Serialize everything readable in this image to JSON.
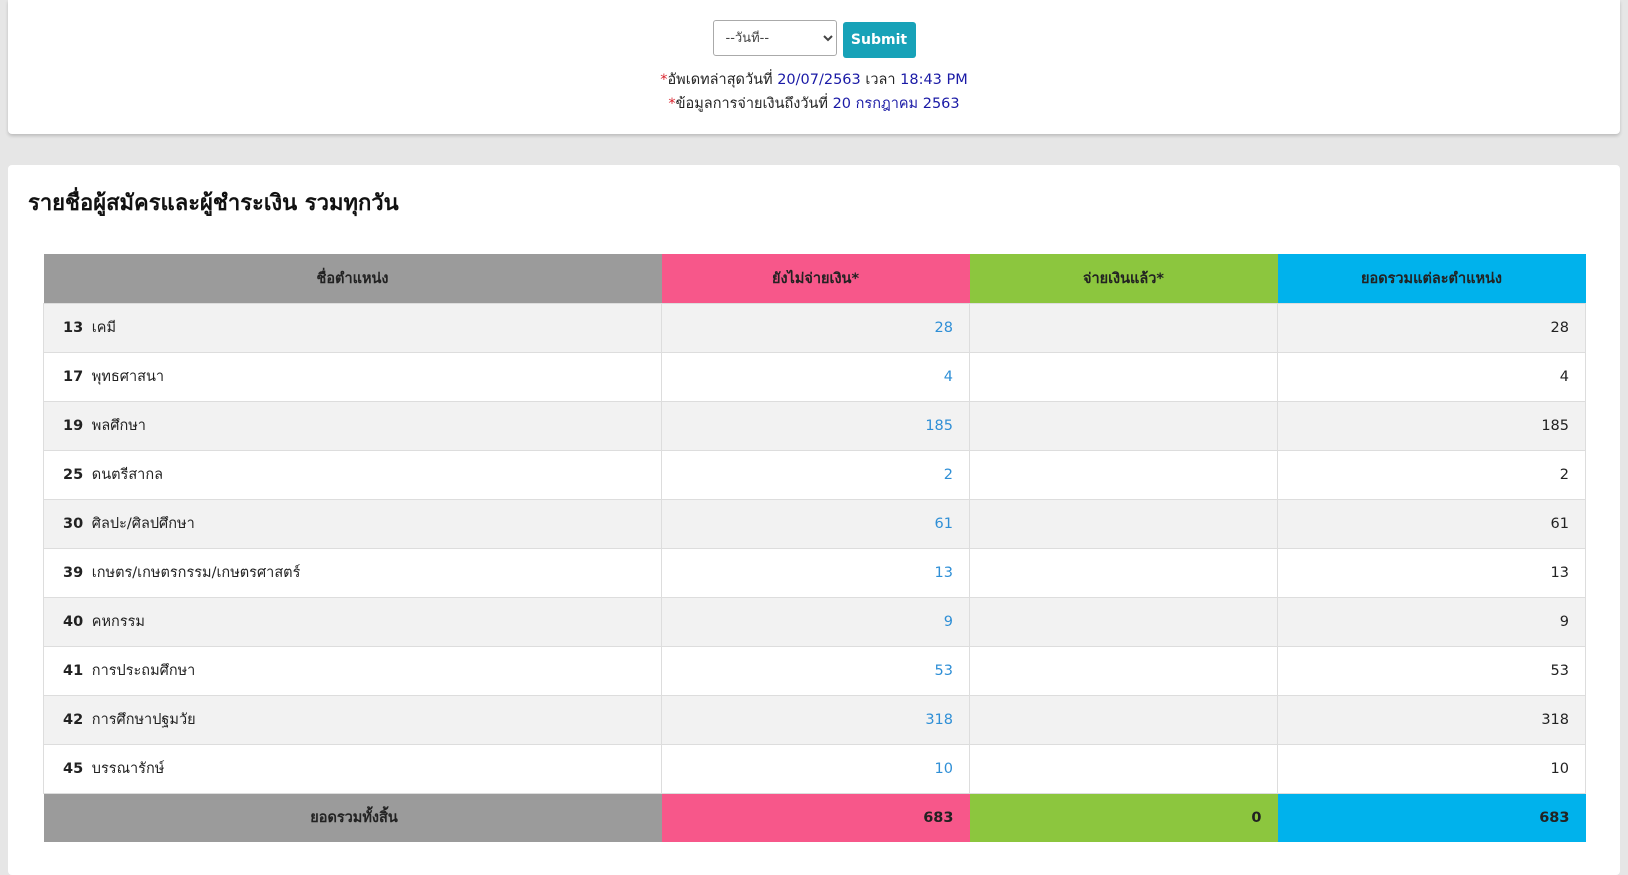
{
  "filter": {
    "date_select_value": "--วันที่--",
    "submit_label": "Submit"
  },
  "info": {
    "update_prefix": "อัพเดทล่าสุดวันที่",
    "update_date": "20/07/2563",
    "time_prefix": "เวลา",
    "update_time": "18:43 PM",
    "payment_prefix": "ข้อมูลการจ่ายเงินถึงวันที่",
    "payment_date": "20 กรกฎาคม 2563",
    "asterisk": "*"
  },
  "section": {
    "title": "รายชื่อผู้สมัครและผู้ชำระเงิน รวมทุกวัน"
  },
  "table": {
    "headers": {
      "name": "ชื่อตำแหน่ง",
      "unpaid": "ยังไม่จ่ายเงิน*",
      "paid": "จ่ายเงินแล้ว*",
      "total": "ยอดรวมแต่ละตำแหน่ง"
    },
    "rows": [
      {
        "code": "13",
        "name": "เคมี",
        "unpaid": "28",
        "paid": "",
        "total": "28"
      },
      {
        "code": "17",
        "name": "พุทธศาสนา",
        "unpaid": "4",
        "paid": "",
        "total": "4"
      },
      {
        "code": "19",
        "name": "พลศึกษา",
        "unpaid": "185",
        "paid": "",
        "total": "185"
      },
      {
        "code": "25",
        "name": "ดนตรีสากล",
        "unpaid": "2",
        "paid": "",
        "total": "2"
      },
      {
        "code": "30",
        "name": "ศิลปะ/ศิลปศึกษา",
        "unpaid": "61",
        "paid": "",
        "total": "61"
      },
      {
        "code": "39",
        "name": "เกษตร/เกษตรกรรม/เกษตรศาสตร์",
        "unpaid": "13",
        "paid": "",
        "total": "13"
      },
      {
        "code": "40",
        "name": "คหกรรม",
        "unpaid": "9",
        "paid": "",
        "total": "9"
      },
      {
        "code": "41",
        "name": "การประถมศึกษา",
        "unpaid": "53",
        "paid": "",
        "total": "53"
      },
      {
        "code": "42",
        "name": "การศึกษาปฐมวัย",
        "unpaid": "318",
        "paid": "",
        "total": "318"
      },
      {
        "code": "45",
        "name": "บรรณารักษ์",
        "unpaid": "10",
        "paid": "",
        "total": "10"
      }
    ],
    "footer": {
      "label": "ยอดรวมทั้งสิ้น",
      "unpaid": "683",
      "paid": "0",
      "total": "683"
    }
  },
  "colors": {
    "submit": "#17a2b8",
    "name_header": "#9b9b9b",
    "unpaid_header": "#f7578a",
    "paid_header": "#8cc63e",
    "total_header": "#00b2ec",
    "link": "#2f8fd6"
  }
}
